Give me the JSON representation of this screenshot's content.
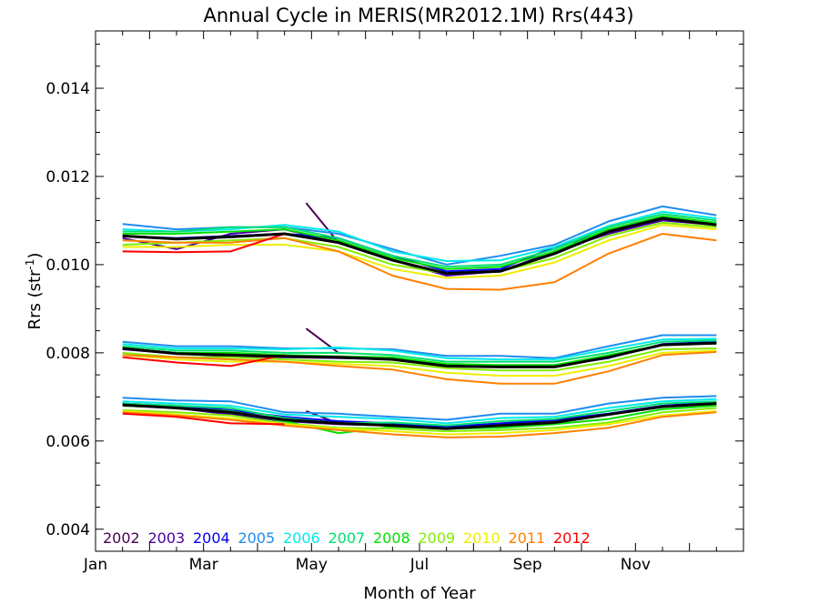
{
  "chart_data": {
    "type": "line",
    "title": "Annual Cycle in MERIS(MR2012.1M) Rrs(443)",
    "xlabel": "Month of Year",
    "ylabel": "Rrs (str",
    "ylabel_superscript": "-1",
    "ylabel_suffix": ")",
    "xlim": [
      0,
      12
    ],
    "ylim": [
      0.0035,
      0.0153
    ],
    "x_ticks": [
      {
        "value": 0,
        "label": "Jan"
      },
      {
        "value": 2,
        "label": "Mar"
      },
      {
        "value": 4,
        "label": "May"
      },
      {
        "value": 6,
        "label": "Jul"
      },
      {
        "value": 8,
        "label": "Sep"
      },
      {
        "value": 10,
        "label": "Nov"
      }
    ],
    "y_ticks": [
      {
        "value": 0.004,
        "label": "0.004"
      },
      {
        "value": 0.006,
        "label": "0.006"
      },
      {
        "value": 0.008,
        "label": "0.008"
      },
      {
        "value": 0.01,
        "label": "0.010"
      },
      {
        "value": 0.012,
        "label": "0.012"
      },
      {
        "value": 0.014,
        "label": "0.014"
      }
    ],
    "legend_position": "bottom-left",
    "grid": false,
    "x": [
      0.5,
      1.5,
      2.5,
      3.5,
      4.5,
      5.5,
      6.5,
      7.5,
      8.5,
      9.5,
      10.5,
      11.5
    ],
    "groups": [
      "upper",
      "middle",
      "lower"
    ],
    "series": [
      {
        "name": "2002",
        "color": "#4b0055",
        "partial": [
          {
            "x": [
              3.9,
              4.5
            ],
            "y": [
              0.0114,
              0.0105
            ]
          },
          {
            "x": [
              3.9,
              4.5
            ],
            "y": [
              0.00855,
              0.008
            ]
          },
          {
            "x": [
              3.9,
              4.5
            ],
            "y": [
              0.00668,
              0.0064
            ]
          }
        ]
      },
      {
        "name": "2003",
        "color": "#4a00a0",
        "upper": [
          0.0106,
          0.01035,
          0.0107,
          0.0108,
          0.0105,
          0.0101,
          0.00975,
          0.00985,
          0.0103,
          0.0107,
          0.011,
          0.0109
        ],
        "middle": [
          0.00808,
          0.00798,
          0.00792,
          0.0079,
          0.00788,
          0.00785,
          0.0077,
          0.00772,
          0.00772,
          0.0079,
          0.00818,
          0.00822
        ],
        "lower": [
          0.0068,
          0.00675,
          0.0066,
          0.00645,
          0.00638,
          0.00635,
          0.0063,
          0.00638,
          0.00645,
          0.0066,
          0.00678,
          0.00685
        ]
      },
      {
        "name": "2004",
        "color": "#0000ee",
        "upper": [
          0.01065,
          0.0106,
          0.01065,
          0.0107,
          0.0106,
          0.0102,
          0.00985,
          0.0099,
          0.0104,
          0.01075,
          0.01105,
          0.01095
        ],
        "middle": [
          0.0081,
          0.008,
          0.00795,
          0.00792,
          0.0079,
          0.00788,
          0.00772,
          0.0077,
          0.0077,
          0.00788,
          0.0082,
          0.00825
        ],
        "lower": [
          0.00685,
          0.0068,
          0.0067,
          0.00655,
          0.00645,
          0.0064,
          0.00632,
          0.0064,
          0.00648,
          0.00662,
          0.0068,
          0.00688
        ]
      },
      {
        "name": "2005",
        "color": "#1e8cf0",
        "upper": [
          0.01092,
          0.0108,
          0.01085,
          0.01085,
          0.0107,
          0.01035,
          0.01,
          0.0102,
          0.01045,
          0.01098,
          0.01132,
          0.01112
        ],
        "middle": [
          0.00825,
          0.00815,
          0.00815,
          0.0081,
          0.0081,
          0.00808,
          0.00793,
          0.00793,
          0.00788,
          0.00815,
          0.0084,
          0.0084
        ],
        "lower": [
          0.00698,
          0.00692,
          0.0069,
          0.00665,
          0.00662,
          0.00655,
          0.00648,
          0.00662,
          0.00662,
          0.00685,
          0.00698,
          0.00702
        ]
      },
      {
        "name": "2006",
        "color": "#00eaea",
        "upper": [
          0.0108,
          0.01075,
          0.0108,
          0.0109,
          0.01075,
          0.0103,
          0.01008,
          0.0101,
          0.0104,
          0.01088,
          0.0112,
          0.01105
        ],
        "middle": [
          0.0082,
          0.0081,
          0.0081,
          0.00808,
          0.00812,
          0.00805,
          0.00788,
          0.00785,
          0.00785,
          0.00808,
          0.0083,
          0.00832
        ],
        "lower": [
          0.0069,
          0.00685,
          0.0068,
          0.0066,
          0.00655,
          0.0065,
          0.0064,
          0.00652,
          0.00655,
          0.00675,
          0.0069,
          0.00695
        ]
      },
      {
        "name": "2007",
        "color": "#00e070",
        "upper": [
          0.01075,
          0.01075,
          0.01085,
          0.01085,
          0.0106,
          0.0102,
          0.00995,
          0.01,
          0.01035,
          0.01085,
          0.01115,
          0.011
        ],
        "middle": [
          0.00815,
          0.00805,
          0.00805,
          0.008,
          0.008,
          0.00795,
          0.0078,
          0.0078,
          0.0078,
          0.008,
          0.00825,
          0.00828
        ],
        "lower": [
          0.00685,
          0.0068,
          0.00675,
          0.00652,
          0.0064,
          0.00642,
          0.00635,
          0.00645,
          0.0065,
          0.00668,
          0.00685,
          0.0069
        ]
      },
      {
        "name": "2008",
        "color": "#00e000",
        "upper": [
          0.0107,
          0.0107,
          0.01075,
          0.0108,
          0.01055,
          0.01015,
          0.0099,
          0.00995,
          0.0103,
          0.0108,
          0.0111,
          0.01095
        ],
        "middle": [
          0.0081,
          0.008,
          0.008,
          0.00795,
          0.00792,
          0.0079,
          0.00775,
          0.00772,
          0.00772,
          0.00795,
          0.00818,
          0.00822
        ],
        "lower": [
          0.0068,
          0.00675,
          0.00668,
          0.00645,
          0.00618,
          0.00632,
          0.00628,
          0.0063,
          0.00638,
          0.0065,
          0.00672,
          0.0068
        ]
      },
      {
        "name": "2009",
        "color": "#80ee00",
        "upper": [
          0.01045,
          0.0105,
          0.01055,
          0.0106,
          0.0104,
          0.01,
          0.0098,
          0.00985,
          0.01015,
          0.01065,
          0.01095,
          0.01085
        ],
        "middle": [
          0.008,
          0.0079,
          0.0079,
          0.00785,
          0.0078,
          0.00778,
          0.00765,
          0.0076,
          0.0076,
          0.0078,
          0.00808,
          0.0081
        ],
        "lower": [
          0.0067,
          0.00665,
          0.00658,
          0.0064,
          0.0063,
          0.00628,
          0.00622,
          0.00625,
          0.0063,
          0.00642,
          0.00665,
          0.00675
        ]
      },
      {
        "name": "2010",
        "color": "#eeee00",
        "upper": [
          0.0104,
          0.0104,
          0.01045,
          0.01045,
          0.0103,
          0.0099,
          0.0097,
          0.00975,
          0.01005,
          0.01055,
          0.0109,
          0.0108
        ],
        "middle": [
          0.00795,
          0.00785,
          0.0078,
          0.0078,
          0.00775,
          0.0077,
          0.00755,
          0.00748,
          0.00748,
          0.0077,
          0.008,
          0.00805
        ],
        "lower": [
          0.00668,
          0.0066,
          0.00652,
          0.00638,
          0.00628,
          0.00622,
          0.00615,
          0.00618,
          0.00625,
          0.00638,
          0.00658,
          0.00668
        ]
      },
      {
        "name": "2011",
        "color": "#ff8000",
        "upper": [
          0.01055,
          0.0105,
          0.0105,
          0.0106,
          0.0103,
          0.00975,
          0.00945,
          0.00943,
          0.0096,
          0.01025,
          0.0107,
          0.01055
        ],
        "middle": [
          0.00795,
          0.0079,
          0.00785,
          0.0078,
          0.0077,
          0.00762,
          0.0074,
          0.0073,
          0.0073,
          0.00758,
          0.00795,
          0.00802
        ],
        "lower": [
          0.00665,
          0.00658,
          0.00648,
          0.00635,
          0.00625,
          0.00615,
          0.00608,
          0.0061,
          0.00618,
          0.0063,
          0.00655,
          0.00665
        ]
      },
      {
        "name": "2012",
        "color": "#ff0000",
        "upper": [
          0.0103,
          0.01028,
          0.0103,
          0.0107
        ],
        "middle": [
          0.0079,
          0.00778,
          0.0077,
          0.00795
        ],
        "lower": [
          0.00662,
          0.00655,
          0.0064,
          0.00638
        ]
      },
      {
        "name": "",
        "color": "#000000",
        "upper": [
          0.01065,
          0.01058,
          0.01063,
          0.0107,
          0.0105,
          0.0101,
          0.0098,
          0.00985,
          0.01025,
          0.01075,
          0.01105,
          0.0109
        ],
        "middle": [
          0.0081,
          0.00798,
          0.00795,
          0.00792,
          0.0079,
          0.00785,
          0.0077,
          0.00768,
          0.00768,
          0.0079,
          0.00818,
          0.00822
        ],
        "lower": [
          0.00682,
          0.00675,
          0.00665,
          0.00648,
          0.0064,
          0.00635,
          0.00628,
          0.00635,
          0.00642,
          0.0066,
          0.00678,
          0.00685
        ]
      }
    ]
  }
}
